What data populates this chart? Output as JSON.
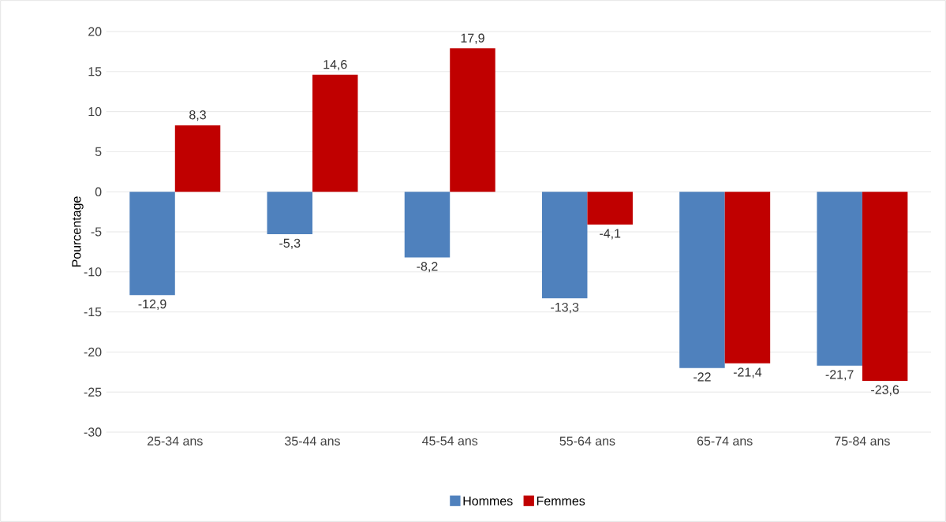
{
  "chart_data": {
    "type": "bar",
    "ylabel": "Pourcentage",
    "categories": [
      "25-34 ans",
      "35-44 ans",
      "45-54 ans",
      "55-64 ans",
      "65-74 ans",
      "75-84 ans"
    ],
    "series": [
      {
        "name": "Hommes",
        "color": "#4f81bd",
        "values": [
          -12.9,
          -5.3,
          -8.2,
          -13.3,
          -22,
          -21.7
        ],
        "value_labels": [
          "-12,9",
          "-5,3",
          "-8,2",
          "-13,3",
          "-22",
          "-21,7"
        ]
      },
      {
        "name": "Femmes",
        "color": "#c00000",
        "values": [
          8.3,
          14.6,
          17.9,
          -4.1,
          -21.4,
          -23.6
        ],
        "value_labels": [
          "8,3",
          "14,6",
          "17,9",
          "-4,1",
          "-21,4",
          "-23,6"
        ]
      }
    ],
    "ylim": [
      -30,
      20
    ],
    "yticks": [
      -30,
      -25,
      -20,
      -15,
      -10,
      -5,
      0,
      5,
      10,
      15,
      20
    ],
    "grid": "y",
    "legend": "bottom"
  }
}
